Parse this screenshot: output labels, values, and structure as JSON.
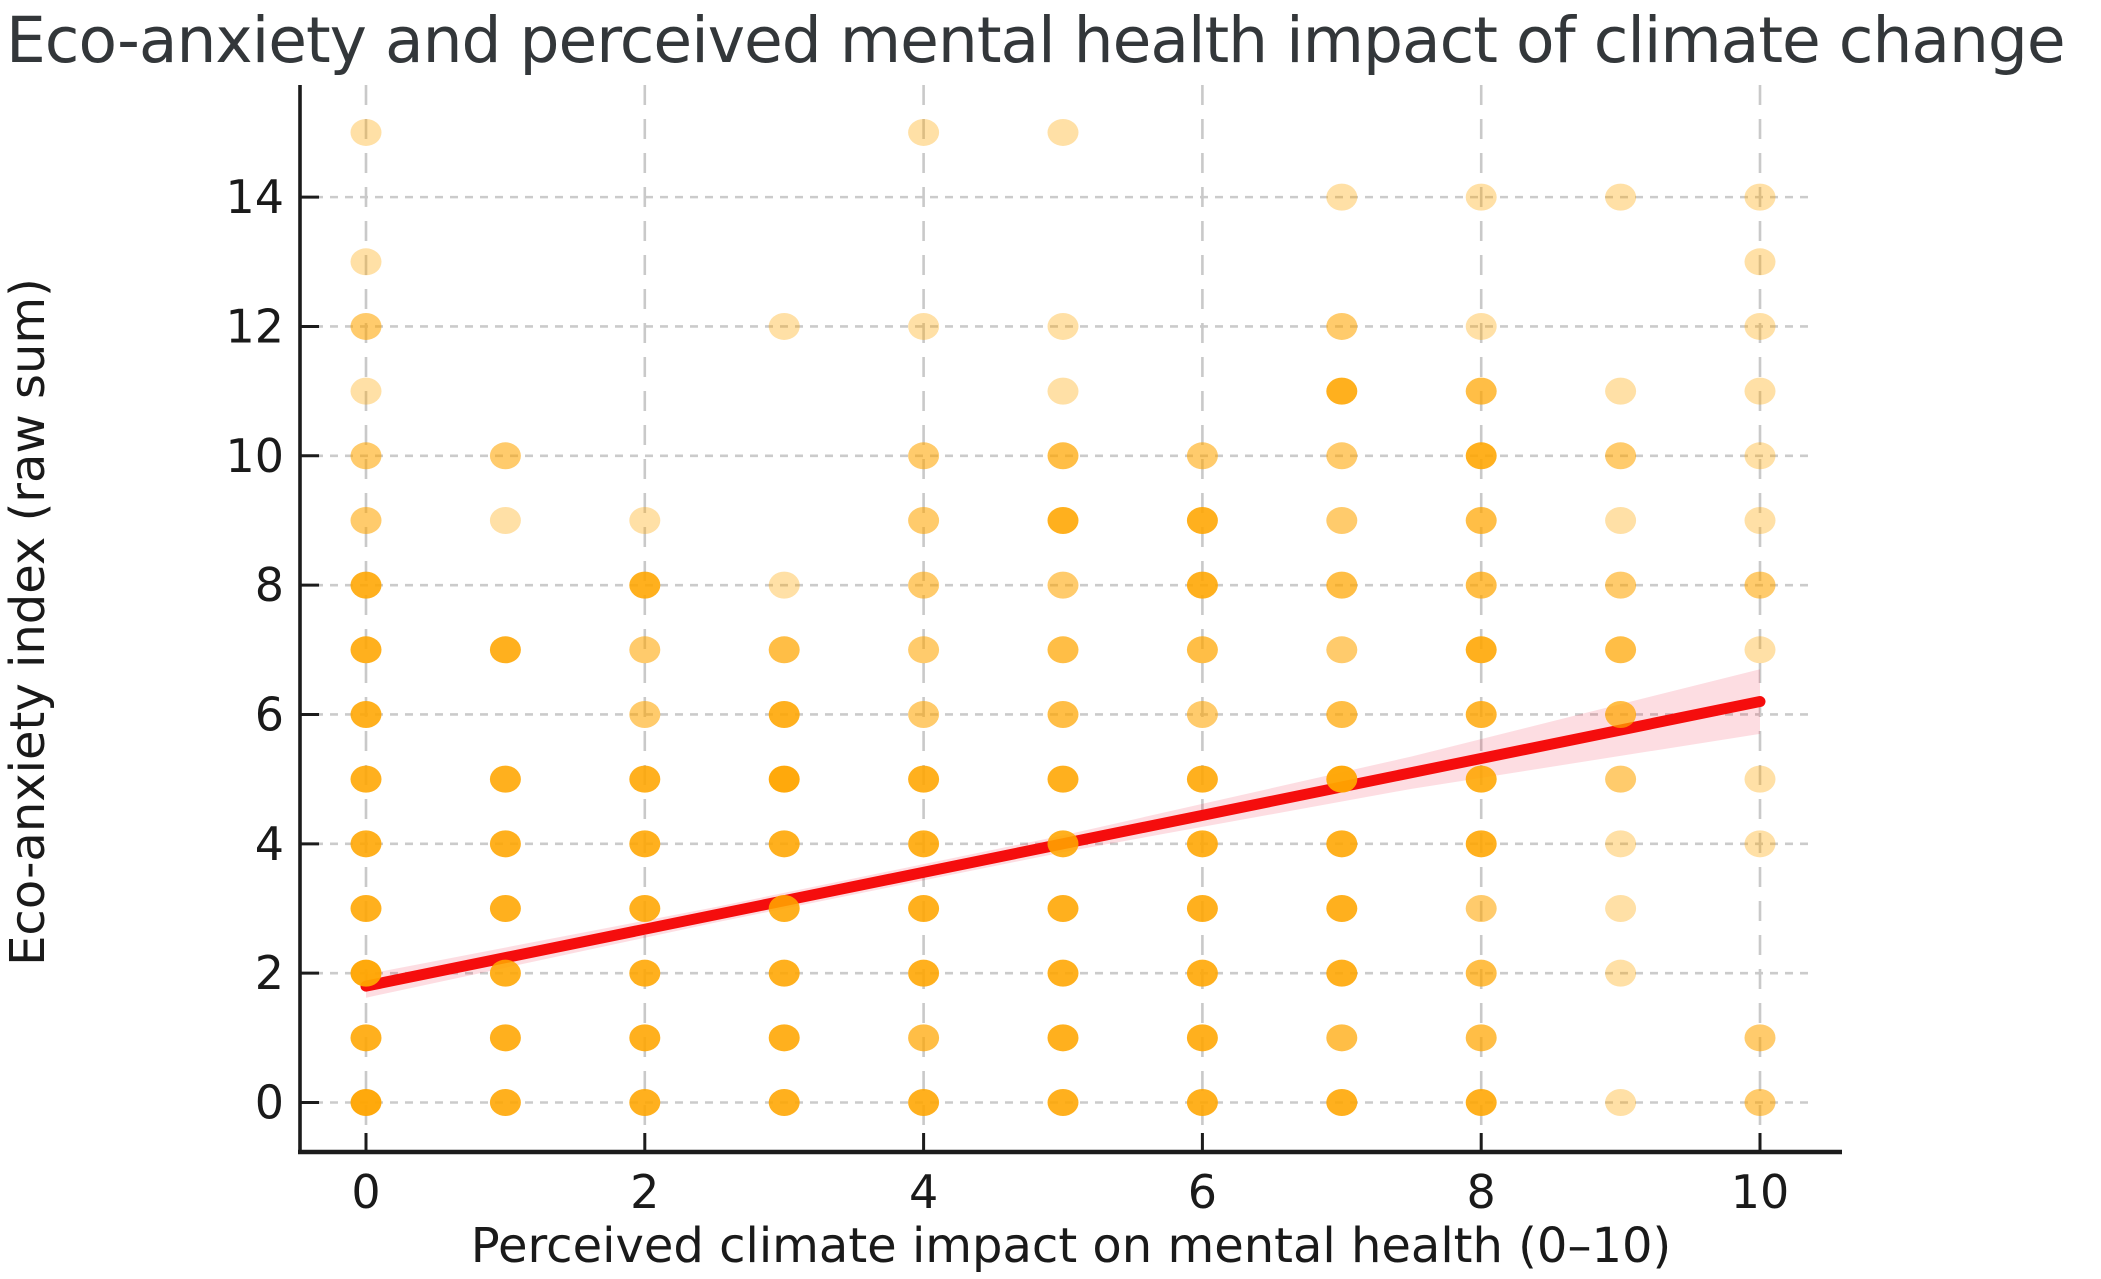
{
  "figure": {
    "title": "Eco-anxiety and perceived mental health impact of climate change",
    "xlabel": "Perceived climate impact on mental health (0–10)",
    "ylabel": "Eco-anxiety index (raw sum)"
  },
  "colors": {
    "background": "#ffffff",
    "title_text": "#33373a",
    "axis_text": "#1a1a1a",
    "spine": "#1c1c1c",
    "grid_horizontal": "#cbcbcb",
    "grid_vertical": "#c9c9c9",
    "scatter": "#FFA500",
    "regression_line": "#f50d0d",
    "confidence_band": "rgba(244,30,60,0.15)"
  },
  "chart_data": {
    "type": "scatter",
    "title": "Eco-anxiety and perceived mental health impact of climate change",
    "xlabel": "Perceived climate impact on mental health (0–10)",
    "ylabel": "Eco-anxiety index (raw sum)",
    "xlim": [
      -0.47,
      10.59
    ],
    "ylim": [
      -0.77,
      15.73
    ],
    "x_ticks": [
      0,
      2,
      4,
      6,
      8,
      10
    ],
    "y_ticks": [
      0,
      2,
      4,
      6,
      8,
      10,
      12,
      14
    ],
    "grid": true,
    "legend": false,
    "marker_base_alpha": 0.35,
    "points_note": "each point is [x, y, overlap_count]; rendered alpha = 1-(1-0.35)^count",
    "points": [
      [
        0,
        0,
        7
      ],
      [
        0,
        1,
        5
      ],
      [
        0,
        2,
        7
      ],
      [
        0,
        3,
        5
      ],
      [
        0,
        4,
        5
      ],
      [
        0,
        5,
        5
      ],
      [
        0,
        6,
        5
      ],
      [
        0,
        7,
        5
      ],
      [
        0,
        8,
        5
      ],
      [
        0,
        9,
        2
      ],
      [
        0,
        10,
        2
      ],
      [
        0,
        11,
        1
      ],
      [
        0,
        12,
        2
      ],
      [
        0,
        13,
        1
      ],
      [
        0,
        15,
        1
      ],
      [
        1,
        0,
        5
      ],
      [
        1,
        1,
        5
      ],
      [
        1,
        2,
        5
      ],
      [
        1,
        3,
        5
      ],
      [
        1,
        4,
        5
      ],
      [
        1,
        5,
        5
      ],
      [
        1,
        7,
        5
      ],
      [
        1,
        9,
        1
      ],
      [
        1,
        10,
        2
      ],
      [
        2,
        0,
        5
      ],
      [
        2,
        1,
        5
      ],
      [
        2,
        2,
        5
      ],
      [
        2,
        3,
        5
      ],
      [
        2,
        4,
        5
      ],
      [
        2,
        5,
        5
      ],
      [
        2,
        6,
        2
      ],
      [
        2,
        7,
        2
      ],
      [
        2,
        8,
        5
      ],
      [
        2,
        9,
        1
      ],
      [
        3,
        0,
        5
      ],
      [
        3,
        1,
        5
      ],
      [
        3,
        2,
        5
      ],
      [
        3,
        3,
        5
      ],
      [
        3,
        4,
        5
      ],
      [
        3,
        5,
        7
      ],
      [
        3,
        6,
        5
      ],
      [
        3,
        7,
        3
      ],
      [
        3,
        8,
        1
      ],
      [
        3,
        12,
        1
      ],
      [
        4,
        0,
        5
      ],
      [
        4,
        1,
        3
      ],
      [
        4,
        2,
        5
      ],
      [
        4,
        3,
        5
      ],
      [
        4,
        4,
        5
      ],
      [
        4,
        5,
        5
      ],
      [
        4,
        6,
        2
      ],
      [
        4,
        7,
        2
      ],
      [
        4,
        8,
        2
      ],
      [
        4,
        9,
        2
      ],
      [
        4,
        10,
        2
      ],
      [
        4,
        12,
        1
      ],
      [
        4,
        15,
        1
      ],
      [
        5,
        0,
        5
      ],
      [
        5,
        1,
        5
      ],
      [
        5,
        2,
        5
      ],
      [
        5,
        3,
        5
      ],
      [
        5,
        4,
        5
      ],
      [
        5,
        5,
        5
      ],
      [
        5,
        6,
        3
      ],
      [
        5,
        7,
        3
      ],
      [
        5,
        8,
        2
      ],
      [
        5,
        9,
        5
      ],
      [
        5,
        10,
        3
      ],
      [
        5,
        11,
        1
      ],
      [
        5,
        12,
        1
      ],
      [
        5,
        15,
        1
      ],
      [
        6,
        0,
        5
      ],
      [
        6,
        1,
        5
      ],
      [
        6,
        2,
        5
      ],
      [
        6,
        3,
        5
      ],
      [
        6,
        4,
        5
      ],
      [
        6,
        5,
        5
      ],
      [
        6,
        6,
        2
      ],
      [
        6,
        7,
        3
      ],
      [
        6,
        8,
        5
      ],
      [
        6,
        9,
        5
      ],
      [
        6,
        10,
        2
      ],
      [
        7,
        0,
        5
      ],
      [
        7,
        1,
        3
      ],
      [
        7,
        2,
        5
      ],
      [
        7,
        3,
        5
      ],
      [
        7,
        4,
        5
      ],
      [
        7,
        5,
        7
      ],
      [
        7,
        6,
        3
      ],
      [
        7,
        7,
        2
      ],
      [
        7,
        8,
        3
      ],
      [
        7,
        9,
        2
      ],
      [
        7,
        10,
        2
      ],
      [
        7,
        11,
        5
      ],
      [
        7,
        12,
        2
      ],
      [
        7,
        14,
        1
      ],
      [
        8,
        0,
        5
      ],
      [
        8,
        1,
        3
      ],
      [
        8,
        2,
        3
      ],
      [
        8,
        3,
        2
      ],
      [
        8,
        4,
        5
      ],
      [
        8,
        5,
        5
      ],
      [
        8,
        6,
        4
      ],
      [
        8,
        7,
        5
      ],
      [
        8,
        8,
        3
      ],
      [
        8,
        9,
        3
      ],
      [
        8,
        10,
        5
      ],
      [
        8,
        11,
        3
      ],
      [
        8,
        12,
        1
      ],
      [
        8,
        14,
        1
      ],
      [
        9,
        0,
        1
      ],
      [
        9,
        2,
        1
      ],
      [
        9,
        3,
        1
      ],
      [
        9,
        4,
        1
      ],
      [
        9,
        5,
        2
      ],
      [
        9,
        6,
        3
      ],
      [
        9,
        7,
        3
      ],
      [
        9,
        8,
        2
      ],
      [
        9,
        9,
        1
      ],
      [
        9,
        10,
        2
      ],
      [
        9,
        11,
        1
      ],
      [
        9,
        14,
        1
      ],
      [
        10,
        0,
        2
      ],
      [
        10,
        1,
        2
      ],
      [
        10,
        4,
        1
      ],
      [
        10,
        5,
        1
      ],
      [
        10,
        7,
        1
      ],
      [
        10,
        8,
        2
      ],
      [
        10,
        9,
        1
      ],
      [
        10,
        10,
        1
      ],
      [
        10,
        11,
        1
      ],
      [
        10,
        12,
        1
      ],
      [
        10,
        13,
        1
      ],
      [
        10,
        14,
        1
      ]
    ],
    "regression_line": {
      "x": [
        0,
        10
      ],
      "y": [
        1.8,
        6.2
      ]
    },
    "confidence_band": {
      "x": [
        0,
        2.5,
        5,
        7.5,
        10
      ],
      "upper": [
        1.98,
        3.02,
        4.13,
        5.35,
        6.7
      ],
      "lower": [
        1.62,
        2.78,
        3.87,
        4.85,
        5.7
      ]
    }
  }
}
